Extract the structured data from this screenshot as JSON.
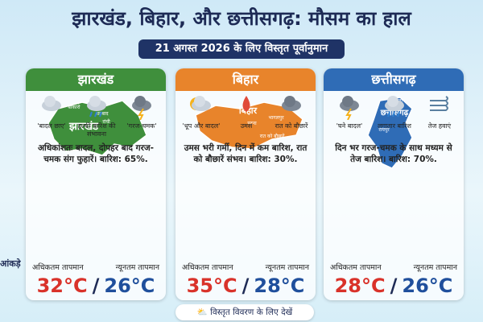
{
  "header": {
    "title": "झारखंड, बिहार, और छत्तीसगढ़: मौसम का हाल",
    "subtitle": "21 अगस्त 2026 के लिए विस्तृत पूर्वानुमान"
  },
  "side_label": "आंकड़े",
  "cards": [
    {
      "name": "झारखंड",
      "icons": [
        "'बादल छाए'",
        "हल्की बारिश की संभावना",
        "'गरज-चमक'"
      ],
      "description": "अधिकांशतः बादल, दोपहर बाद गरज-चमक संग फुहारें। बारिश: 65%.",
      "map_labels": [
        "झारखंड",
        "बोकारो",
        "धनबाद",
        "रांची"
      ],
      "max_label": "अधिकतम तापमान",
      "min_label": "न्यूनतम तापमान",
      "max_temp": "32°C",
      "separator": "/",
      "min_temp": "26°C"
    },
    {
      "name": "बिहार",
      "icons": [
        "'धूप और बादल'",
        "उमस",
        "रात को बौछारें"
      ],
      "description": "उमस भरी गर्मी, दिन में कम बारिश, रात को बौछारें संभव। बारिश: 30%.",
      "map_labels": [
        "बिहार",
        "पटना",
        "भागलपुर",
        "रात को बौछारें"
      ],
      "max_label": "अधिकतम तापमान",
      "min_label": "न्यूनतम तापमान",
      "max_temp": "35°C",
      "separator": "/",
      "min_temp": "28°C"
    },
    {
      "name": "छत्तीसगढ़",
      "icons": [
        "'घने बादल'",
        "लगातार बारिश",
        "तेज हवाएं"
      ],
      "description": "दिन भर गरज-चमक के साथ मध्यम से तेज बारिश। बारिश: 70%.",
      "map_labels": [
        "छत्तीसगढ़",
        "सरगुजा",
        "रायपुर"
      ],
      "max_label": "अधिकतम तापमान",
      "min_label": "न्यूनतम तापमान",
      "max_temp": "28°C",
      "separator": "/",
      "min_temp": "26°C"
    }
  ],
  "footer": {
    "text": "विस्तृत विवरण के लिए देखें"
  }
}
